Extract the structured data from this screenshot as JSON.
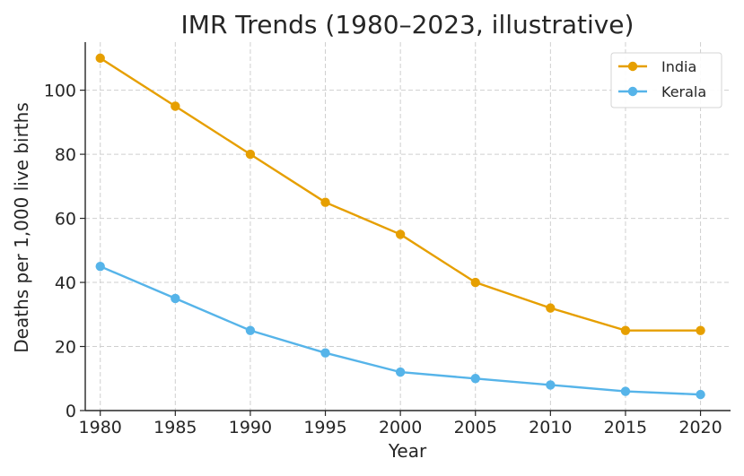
{
  "chart_data": {
    "type": "line",
    "title": "IMR Trends (1980–2023, illustrative)",
    "xlabel": "Year",
    "ylabel": "Deaths per 1,000 live births",
    "x": [
      1980,
      1985,
      1990,
      1995,
      2000,
      2005,
      2010,
      2015,
      2020
    ],
    "xlim": [
      1979,
      2022
    ],
    "ylim": [
      0,
      115
    ],
    "xticks": [
      1980,
      1985,
      1990,
      1995,
      2000,
      2005,
      2010,
      2015,
      2020
    ],
    "yticks": [
      0,
      20,
      40,
      60,
      80,
      100
    ],
    "grid": true,
    "legend_position": "top-right",
    "series": [
      {
        "name": "India",
        "color": "#E69F00",
        "values": [
          110,
          95,
          80,
          65,
          55,
          40,
          32,
          25,
          25
        ]
      },
      {
        "name": "Kerala",
        "color": "#56B4E9",
        "values": [
          45,
          35,
          25,
          18,
          12,
          10,
          8,
          6,
          5
        ]
      }
    ]
  }
}
